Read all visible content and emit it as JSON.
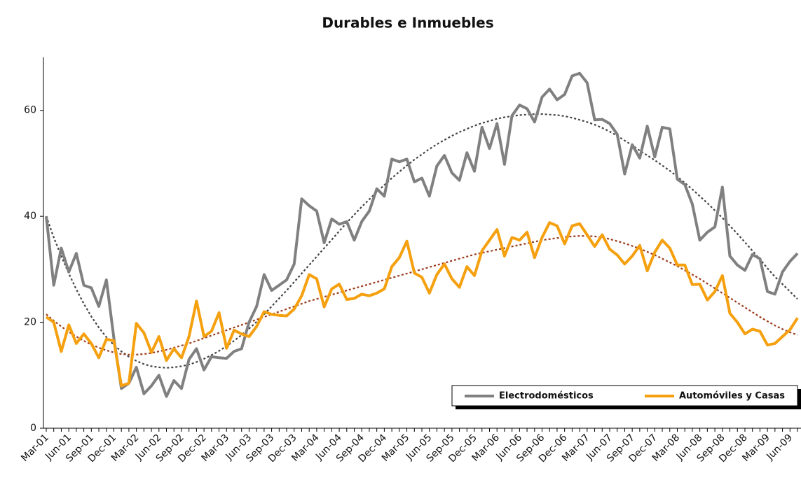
{
  "chart_data": {
    "type": "line",
    "title": "Durables e Inmuebles",
    "categories": [
      "Mar-01",
      null,
      null,
      "Jun-01",
      null,
      null,
      "Sep-01",
      null,
      null,
      "Dec-01",
      null,
      null,
      "Mar-02",
      null,
      null,
      "Jun-02",
      null,
      null,
      "Sep-02",
      null,
      null,
      "Dec-02",
      null,
      null,
      "Mar-03",
      null,
      null,
      "Jun-03",
      null,
      null,
      "Sep-03",
      null,
      null,
      "Dec-03",
      null,
      null,
      "Mar-04",
      null,
      null,
      "Jun-04",
      null,
      null,
      "Sep-04",
      null,
      null,
      "Dec-04",
      null,
      null,
      "Mar-05",
      null,
      null,
      "Jun-05",
      null,
      null,
      "Sep-05",
      null,
      null,
      "Dec-05",
      null,
      null,
      "Mar-06",
      null,
      null,
      "Jun-06",
      null,
      null,
      "Sep-06",
      null,
      null,
      "Dec-06",
      null,
      null,
      "Mar-07",
      null,
      null,
      "Jun-07",
      null,
      null,
      "Sep-07",
      null,
      null,
      "Dec-07",
      null,
      null,
      "Mar-08",
      null,
      null,
      "Jun-08",
      null,
      null,
      "Sep-08",
      null,
      null,
      "Dec-08",
      null,
      null,
      "Mar-09",
      null,
      null,
      "Jun-09",
      null
    ],
    "ylim": [
      0,
      70
    ],
    "yticks": [
      0,
      20,
      40,
      60
    ],
    "grid": false,
    "series": [
      {
        "name": "Electrodomésticos",
        "color": "#808080",
        "values": [
          40,
          27,
          34,
          29.5,
          33,
          27,
          26.5,
          23,
          28,
          17,
          7.5,
          8.5,
          11.5,
          6.5,
          8,
          10,
          6,
          9,
          7.5,
          13,
          15,
          11,
          13.5,
          13.3,
          13.2,
          14.5,
          15,
          20,
          23,
          29,
          26,
          27,
          28,
          31,
          43.3,
          42,
          41,
          35,
          39.5,
          38.5,
          39,
          35.5,
          39,
          41,
          45.2,
          43.8,
          50.8,
          50.3,
          50.8,
          46.5,
          47.2,
          43.8,
          49.5,
          51.5,
          48.2,
          46.8,
          52,
          48.5,
          56.8,
          52.8,
          57.5,
          49.8,
          59,
          61,
          60.3,
          57.8,
          62.5,
          64,
          62,
          63,
          66.5,
          67,
          65.2,
          58.2,
          58.3,
          57.5,
          55.5,
          48,
          53.5,
          51,
          57,
          51.2,
          56.8,
          56.5,
          47,
          46,
          42.3,
          35.5,
          37,
          38,
          45.5,
          32.5,
          30.8,
          29.8,
          32.8,
          32,
          25.8,
          25.3,
          29.5,
          31.5,
          33
        ]
      },
      {
        "name": "Automóviles y Casas",
        "color": "#f5a00f",
        "values": [
          21,
          20,
          14.5,
          19.5,
          16,
          17.8,
          16,
          13.3,
          16.8,
          16.5,
          8,
          8.5,
          19.8,
          18,
          14.3,
          17.3,
          12.8,
          15,
          13.3,
          17.3,
          24,
          17.3,
          18.3,
          21.8,
          15.1,
          18.5,
          17.8,
          17.3,
          19.2,
          22,
          21.5,
          21.3,
          21.2,
          22.5,
          25,
          29,
          28.2,
          22.9,
          26.3,
          27.2,
          24.3,
          24.5,
          25.3,
          25,
          25.5,
          26.3,
          30.5,
          32.2,
          35.3,
          29.3,
          28.5,
          25.5,
          29,
          31,
          28.2,
          26.6,
          30.5,
          28.8,
          33.5,
          35.5,
          37.5,
          32.5,
          36,
          35.5,
          37,
          32.2,
          36,
          38.8,
          38.2,
          34.8,
          38.2,
          38.6,
          36.5,
          34.3,
          36.5,
          33.8,
          32.7,
          31,
          32.5,
          34.5,
          29.7,
          33.2,
          35.5,
          34,
          30.8,
          30.8,
          27.1,
          27.2,
          24.2,
          25.8,
          28.8,
          21.7,
          20,
          17.8,
          18.7,
          18.3,
          15.7,
          16,
          17.3,
          18.6,
          20.8
        ]
      },
      {
        "color": "#444444",
        "dash": true,
        "values": [
          40,
          36,
          32.5,
          29.2,
          26.2,
          23.5,
          21.1,
          19,
          17.2,
          15.7,
          14.5,
          13.5,
          12.7,
          12.1,
          11.7,
          11.5,
          11.4,
          11.5,
          11.7,
          12,
          12.5,
          13.1,
          13.8,
          14.6,
          15.5,
          16.5,
          17.6,
          18.8,
          20.1,
          21.5,
          23,
          24.5,
          26,
          27.6,
          29.2,
          30.8,
          32.4,
          34,
          35.6,
          37.2,
          38.8,
          40.3,
          41.8,
          43.2,
          44.6,
          45.9,
          47.2,
          48.4,
          49.6,
          50.7,
          51.7,
          52.7,
          53.6,
          54.4,
          55.2,
          55.9,
          56.5,
          57.1,
          57.6,
          58,
          58.4,
          58.7,
          58.9,
          59.1,
          59.2,
          59.3,
          59.3,
          59.2,
          59.1,
          58.9,
          58.6,
          58.2,
          57.8,
          57.3,
          56.7,
          56,
          55.2,
          54.3,
          53.4,
          52.4,
          51.5,
          50.6,
          49.6,
          48.6,
          47.5,
          46.3,
          45.1,
          43.8,
          42.5,
          41.1,
          39.7,
          38.2,
          36.7,
          35.1,
          33.5,
          31.9,
          30.2,
          28.6,
          27.2,
          25.8,
          24.4
        ]
      },
      {
        "color": "#9a3a1a",
        "dash": true,
        "values": [
          21.5,
          20.3,
          19.2,
          18.2,
          17.3,
          16.5,
          15.8,
          15.2,
          14.7,
          14.3,
          14,
          13.9,
          13.9,
          14,
          14.2,
          14.5,
          14.8,
          15.2,
          15.6,
          16,
          16.5,
          17,
          17.5,
          18,
          18.5,
          19,
          19.5,
          20,
          20.5,
          21,
          21.5,
          22,
          22.5,
          23,
          23.5,
          24,
          24.4,
          24.8,
          25.2,
          25.6,
          26,
          26.4,
          26.8,
          27.2,
          27.6,
          28,
          28.4,
          28.8,
          29.2,
          29.6,
          30,
          30.4,
          30.8,
          31.2,
          31.6,
          32,
          32.4,
          32.8,
          33.1,
          33.4,
          33.7,
          34,
          34.3,
          34.6,
          34.9,
          35.2,
          35.5,
          35.7,
          35.9,
          36.1,
          36.2,
          36.3,
          36.3,
          36.2,
          36,
          35.7,
          35.3,
          34.9,
          34.4,
          33.9,
          33.3,
          32.7,
          32,
          31.3,
          30.6,
          29.8,
          29,
          28.2,
          27.3,
          26.4,
          25.5,
          24.6,
          23.7,
          22.8,
          21.9,
          21,
          20.2,
          19.4,
          18.7,
          18.1,
          17.6
        ]
      }
    ]
  }
}
